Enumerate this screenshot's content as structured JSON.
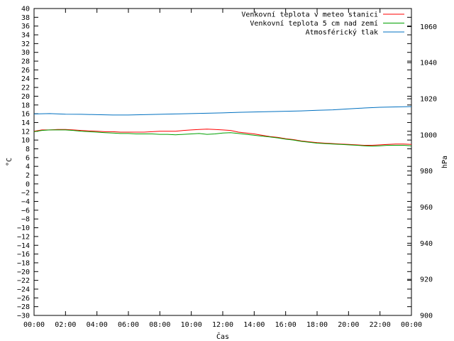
{
  "chart_data": {
    "type": "line",
    "xlabel": "Čas",
    "ylabel": "°C",
    "y2label": "hPa",
    "x_ticks": [
      "00:00",
      "02:00",
      "04:00",
      "06:00",
      "08:00",
      "10:00",
      "12:00",
      "14:00",
      "16:00",
      "18:00",
      "20:00",
      "22:00",
      "00:00"
    ],
    "xlim_hours": [
      0,
      24
    ],
    "ylim": [
      -30,
      40
    ],
    "y_tick_step": 2,
    "y2lim": [
      900,
      1070
    ],
    "y2_ticks": [
      900,
      920,
      940,
      960,
      980,
      1000,
      1020,
      1040,
      1060
    ],
    "legend_position": "top-right",
    "series": [
      {
        "name": "Venkovní teplota v meteo stanici",
        "color": "#ff0000",
        "axis": "left",
        "x": [
          0,
          0.5,
          1,
          1.5,
          2,
          2.5,
          3,
          3.5,
          4,
          4.5,
          5,
          5.5,
          6,
          6.5,
          7,
          7.5,
          8,
          8.5,
          9,
          9.5,
          10,
          10.5,
          11,
          11.5,
          12,
          12.5,
          13,
          13.5,
          14,
          14.5,
          15,
          15.5,
          16,
          16.5,
          17,
          17.5,
          18,
          18.5,
          19,
          19.5,
          20,
          20.5,
          21,
          21.5,
          22,
          22.5,
          23,
          23.5,
          24
        ],
        "values": [
          12.0,
          12.3,
          12.3,
          12.4,
          12.4,
          12.3,
          12.2,
          12.1,
          12.0,
          11.9,
          11.9,
          11.8,
          11.8,
          11.8,
          11.8,
          11.9,
          12.0,
          12.0,
          12.0,
          12.2,
          12.3,
          12.4,
          12.5,
          12.4,
          12.3,
          12.2,
          11.8,
          11.6,
          11.4,
          11.1,
          10.8,
          10.6,
          10.3,
          10.1,
          9.8,
          9.6,
          9.4,
          9.3,
          9.2,
          9.1,
          9.0,
          8.9,
          8.8,
          8.8,
          8.9,
          9.0,
          9.1,
          9.1,
          9.0
        ]
      },
      {
        "name": "Venkovní teplota 5 cm nad zemí",
        "color": "#00a000",
        "axis": "left",
        "x": [
          0,
          0.5,
          1,
          1.5,
          2,
          2.5,
          3,
          3.5,
          4,
          4.5,
          5,
          5.5,
          6,
          6.5,
          7,
          7.5,
          8,
          8.5,
          9,
          9.5,
          10,
          10.5,
          11,
          11.5,
          12,
          12.5,
          13,
          13.5,
          14,
          14.5,
          15,
          15.5,
          16,
          16.5,
          17,
          17.5,
          18,
          18.5,
          19,
          19.5,
          20,
          20.5,
          21,
          21.5,
          22,
          22.5,
          23,
          23.5,
          24
        ],
        "values": [
          11.9,
          12.2,
          12.3,
          12.3,
          12.3,
          12.2,
          12.0,
          11.9,
          11.8,
          11.7,
          11.6,
          11.5,
          11.5,
          11.4,
          11.4,
          11.4,
          11.3,
          11.3,
          11.2,
          11.3,
          11.4,
          11.5,
          11.3,
          11.4,
          11.6,
          11.7,
          11.5,
          11.3,
          11.1,
          10.9,
          10.7,
          10.5,
          10.2,
          10.0,
          9.7,
          9.5,
          9.3,
          9.2,
          9.1,
          9.0,
          8.9,
          8.8,
          8.7,
          8.6,
          8.7,
          8.8,
          8.8,
          8.8,
          8.7
        ]
      },
      {
        "name": "Atmosférický tlak",
        "color": "#0070c0",
        "axis": "right",
        "x": [
          0,
          1,
          2,
          3,
          4,
          5,
          6,
          7,
          8,
          9,
          10,
          11,
          12,
          13,
          14,
          15,
          16,
          17,
          18,
          19,
          20,
          21,
          22,
          23,
          24
        ],
        "values": [
          1011.6,
          1011.8,
          1011.5,
          1011.4,
          1011.2,
          1011.0,
          1011.0,
          1011.2,
          1011.4,
          1011.6,
          1011.8,
          1012.0,
          1012.2,
          1012.5,
          1012.7,
          1012.9,
          1013.1,
          1013.3,
          1013.6,
          1013.9,
          1014.4,
          1014.9,
          1015.3,
          1015.5,
          1015.7
        ]
      }
    ]
  }
}
